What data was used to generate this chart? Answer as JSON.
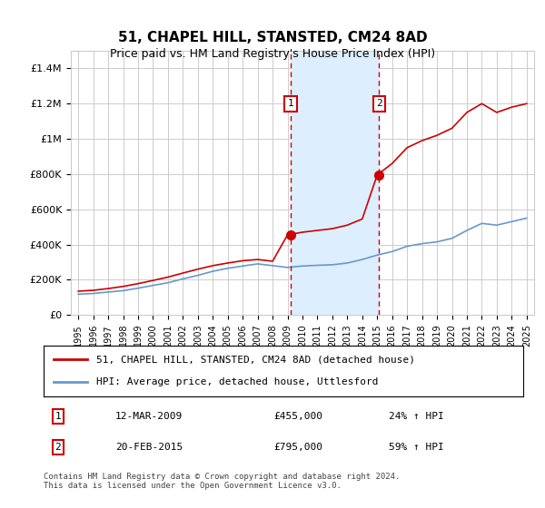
{
  "title": "51, CHAPEL HILL, STANSTED, CM24 8AD",
  "subtitle": "Price paid vs. HM Land Registry's House Price Index (HPI)",
  "footer": "Contains HM Land Registry data © Crown copyright and database right 2024.\nThis data is licensed under the Open Government Licence v3.0.",
  "legend_line1": "51, CHAPEL HILL, STANSTED, CM24 8AD (detached house)",
  "legend_line2": "HPI: Average price, detached house, Uttlesford",
  "sale1_label": "1",
  "sale1_date": "12-MAR-2009",
  "sale1_price": "£455,000",
  "sale1_hpi": "24% ↑ HPI",
  "sale1_year": 2009.2,
  "sale1_value": 455000,
  "sale2_label": "2",
  "sale2_date": "20-FEB-2015",
  "sale2_price": "£795,000",
  "sale2_hpi": "59% ↑ HPI",
  "sale2_year": 2015.12,
  "sale2_value": 795000,
  "red_color": "#cc0000",
  "blue_color": "#6699cc",
  "shade_color": "#ddeeff",
  "grid_color": "#cccccc",
  "background_color": "#ffffff",
  "ylim": [
    0,
    1500000
  ],
  "xlim_start": 1994.5,
  "xlim_end": 2025.5,
  "hpi_years": [
    1995,
    1996,
    1997,
    1998,
    1999,
    2000,
    2001,
    2002,
    2003,
    2004,
    2005,
    2006,
    2007,
    2008,
    2009,
    2010,
    2011,
    2012,
    2013,
    2014,
    2015,
    2016,
    2017,
    2018,
    2019,
    2020,
    2021,
    2022,
    2023,
    2024,
    2025
  ],
  "hpi_values": [
    118000,
    122000,
    130000,
    138000,
    152000,
    168000,
    183000,
    205000,
    225000,
    248000,
    265000,
    278000,
    290000,
    280000,
    270000,
    278000,
    282000,
    285000,
    295000,
    315000,
    340000,
    360000,
    390000,
    405000,
    415000,
    435000,
    480000,
    520000,
    510000,
    530000,
    550000
  ],
  "property_years": [
    1995,
    1996,
    1997,
    1998,
    1999,
    2000,
    2001,
    2002,
    2003,
    2004,
    2005,
    2006,
    2007,
    2008,
    2009,
    2010,
    2011,
    2012,
    2013,
    2014,
    2015,
    2016,
    2017,
    2018,
    2019,
    2020,
    2021,
    2022,
    2023,
    2024,
    2025
  ],
  "property_values": [
    135000,
    140000,
    150000,
    162000,
    178000,
    196000,
    215000,
    238000,
    260000,
    280000,
    295000,
    308000,
    315000,
    305000,
    455000,
    470000,
    480000,
    490000,
    510000,
    545000,
    795000,
    860000,
    950000,
    990000,
    1020000,
    1060000,
    1150000,
    1200000,
    1150000,
    1180000,
    1200000
  ]
}
